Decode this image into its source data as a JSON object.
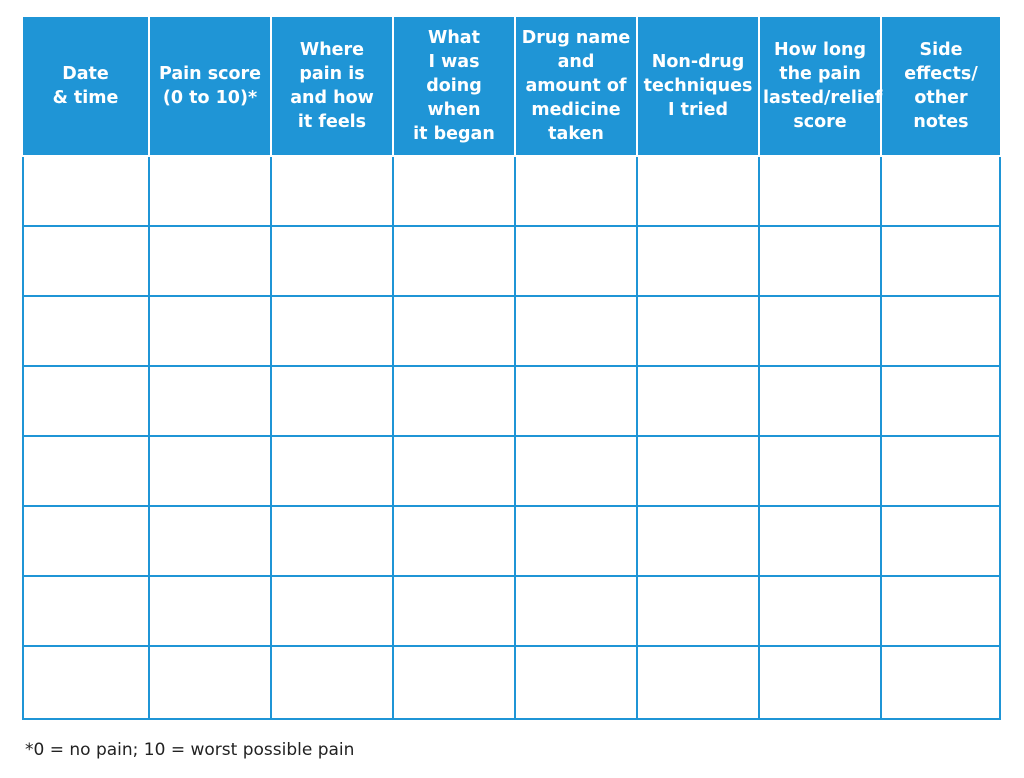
{
  "table": {
    "headers": [
      "Date\n& time",
      "Pain score\n(0 to 10)*",
      "Where\npain is\nand how\nit feels",
      "What\nI was\ndoing when\nit began",
      "Drug name\nand\namount of\nmedicine\ntaken",
      "Non-drug\ntechniques\nI tried",
      "How long\nthe pain\nlasted/relief\nscore",
      "Side effects/\nother notes"
    ],
    "rows": [
      [
        "",
        "",
        "",
        "",
        "",
        "",
        "",
        ""
      ],
      [
        "",
        "",
        "",
        "",
        "",
        "",
        "",
        ""
      ],
      [
        "",
        "",
        "",
        "",
        "",
        "",
        "",
        ""
      ],
      [
        "",
        "",
        "",
        "",
        "",
        "",
        "",
        ""
      ],
      [
        "",
        "",
        "",
        "",
        "",
        "",
        "",
        ""
      ],
      [
        "",
        "",
        "",
        "",
        "",
        "",
        "",
        ""
      ],
      [
        "",
        "",
        "",
        "",
        "",
        "",
        "",
        ""
      ],
      [
        "",
        "",
        "",
        "",
        "",
        "",
        "",
        ""
      ]
    ]
  },
  "footnote": "*0 = no pain; 10 = worst possible pain",
  "colors": {
    "accent": "#1f95d6",
    "header_text": "#ffffff",
    "footnote_text": "#222222"
  }
}
